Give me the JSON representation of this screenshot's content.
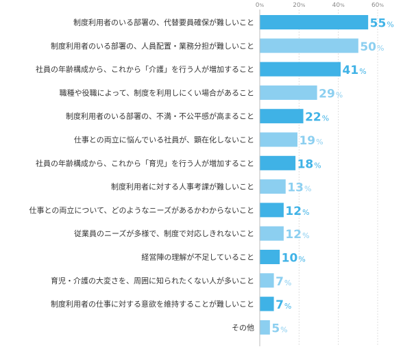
{
  "chart_data": {
    "type": "bar",
    "orientation": "horizontal",
    "title": "",
    "xlabel": "",
    "ylabel": "",
    "xlim": [
      0,
      60
    ],
    "ticks": [
      {
        "value": 0,
        "num": "0",
        "unit": "%"
      },
      {
        "value": 20,
        "num": "20",
        "unit": "%"
      },
      {
        "value": 40,
        "num": "40",
        "unit": "%"
      },
      {
        "value": 60,
        "num": "60",
        "unit": "%"
      }
    ],
    "value_unit": "%",
    "grid": true,
    "colors": {
      "dark": "#3fb2e6",
      "light": "#8ccff0"
    },
    "categories": [
      "制度利用者のいる部署の、代替要員確保が難しいこと",
      "制度利用者のいる部署の、人員配置・業務分担が難しいこと",
      "社員の年齢構成から、これから「介護」を行う人が増加すること",
      "職種や役職によって、制度を利用しにくい場合があること",
      "制度利用者のいる部署の、不満・不公平感が高まること",
      "仕事との両立に悩んでいる社員が、顕在化しないこと",
      "社員の年齢構成から、これから「育児」を行う人が増加すること",
      "制度利用者に対する人事考課が難しいこと",
      "仕事との両立について、どのようなニーズがあるかわからないこと",
      "従業員のニーズが多様で、制度で対応しきれないこと",
      "経営陣の理解が不足していること",
      "育児・介護の大変さを、周囲に知られたくない人が多いこと",
      "制度利用者の仕事に対する意欲を維持することが難しいこと",
      "その他"
    ],
    "values": [
      55,
      50,
      41,
      29,
      22,
      19,
      18,
      13,
      12,
      12,
      10,
      7,
      7,
      5
    ]
  }
}
